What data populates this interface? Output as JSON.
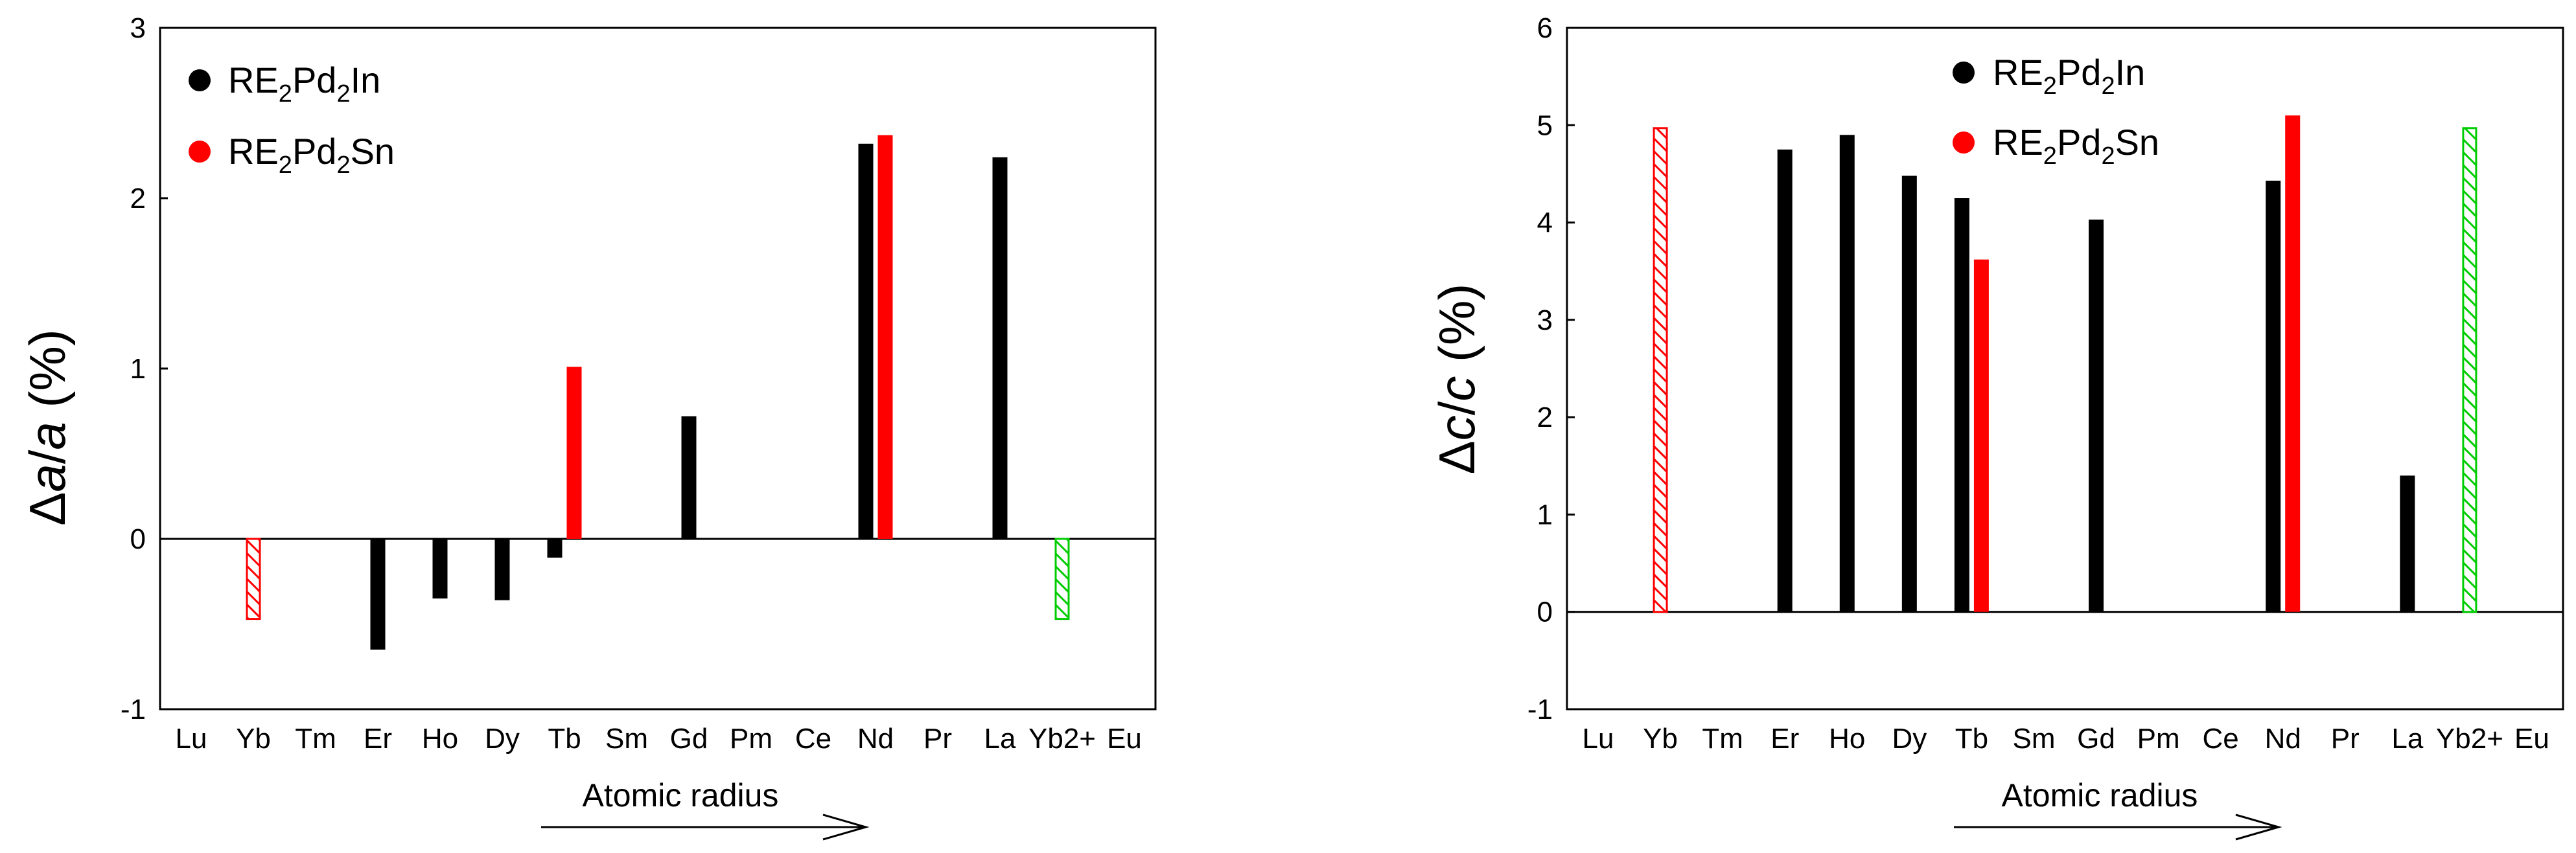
{
  "chart_data": [
    {
      "type": "bar",
      "id": "delta-a",
      "ylabel": {
        "prefix": "Δ",
        "var1": "a",
        "sep": "/",
        "var2": "a",
        "unit": " (%)"
      },
      "ylim": [
        -1,
        3
      ],
      "yticks": [
        "-1",
        "0",
        "1",
        "2",
        "3"
      ],
      "ytick_values": [
        -1,
        0,
        1,
        2,
        3
      ],
      "categories": [
        "Lu",
        "Yb",
        "Tm",
        "Er",
        "Ho",
        "Dy",
        "Tb",
        "Sm",
        "Gd",
        "Pm",
        "Ce",
        "Nd",
        "Pr",
        "La",
        "Yb2+",
        "Eu"
      ],
      "series": [
        {
          "name": "RE2Pd2In",
          "color": "#000000",
          "values": {
            "Er": -0.65,
            "Ho": -0.35,
            "Dy": -0.36,
            "Tb": -0.11,
            "Gd": 0.72,
            "Nd": 2.32,
            "La": 2.24
          }
        },
        {
          "name": "RE2Pd2Sn",
          "color": "#ff0000",
          "values": {
            "Tb": 1.01,
            "Nd": 2.37
          }
        }
      ],
      "hatched": [
        {
          "category": "Yb",
          "value": -0.47,
          "color": "#ff0000"
        },
        {
          "category": "Yb2+",
          "value": -0.47,
          "color": "#00cc00"
        }
      ],
      "legend": [
        {
          "base": "RE",
          "s1": "2",
          "mid": "Pd",
          "s2": "2",
          "end": "In",
          "color": "#000000"
        },
        {
          "base": "RE",
          "s1": "2",
          "mid": "Pd",
          "s2": "2",
          "end": "Sn",
          "color": "#ff0000"
        }
      ],
      "legend_position": "top-left",
      "arrow_label": "Atomic radius"
    },
    {
      "type": "bar",
      "id": "delta-c",
      "ylabel": {
        "prefix": "Δ",
        "var1": "c",
        "sep": "/",
        "var2": "c",
        "unit": " (%)"
      },
      "ylim": [
        -1,
        6
      ],
      "yticks": [
        "-1",
        "0",
        "1",
        "2",
        "3",
        "4",
        "5",
        "6"
      ],
      "ytick_values": [
        -1,
        0,
        1,
        2,
        3,
        4,
        5,
        6
      ],
      "categories": [
        "Lu",
        "Yb",
        "Tm",
        "Er",
        "Ho",
        "Dy",
        "Tb",
        "Sm",
        "Gd",
        "Pm",
        "Ce",
        "Nd",
        "Pr",
        "La",
        "Yb2+",
        "Eu"
      ],
      "series": [
        {
          "name": "RE2Pd2In",
          "color": "#000000",
          "values": {
            "Er": 4.75,
            "Ho": 4.9,
            "Dy": 4.48,
            "Tb": 4.25,
            "Gd": 4.03,
            "Nd": 4.43,
            "La": 1.4
          }
        },
        {
          "name": "RE2Pd2Sn",
          "color": "#ff0000",
          "values": {
            "Tb": 3.62,
            "Nd": 5.1
          }
        }
      ],
      "hatched": [
        {
          "category": "Yb",
          "value": 4.97,
          "color": "#ff0000"
        },
        {
          "category": "Yb2+",
          "value": 4.97,
          "color": "#00cc00"
        }
      ],
      "legend": [
        {
          "base": "RE",
          "s1": "2",
          "mid": "Pd",
          "s2": "2",
          "end": "In",
          "color": "#000000"
        },
        {
          "base": "RE",
          "s1": "2",
          "mid": "Pd",
          "s2": "2",
          "end": "Sn",
          "color": "#ff0000"
        }
      ],
      "legend_position": "top-center",
      "arrow_label": "Atomic radius"
    }
  ]
}
